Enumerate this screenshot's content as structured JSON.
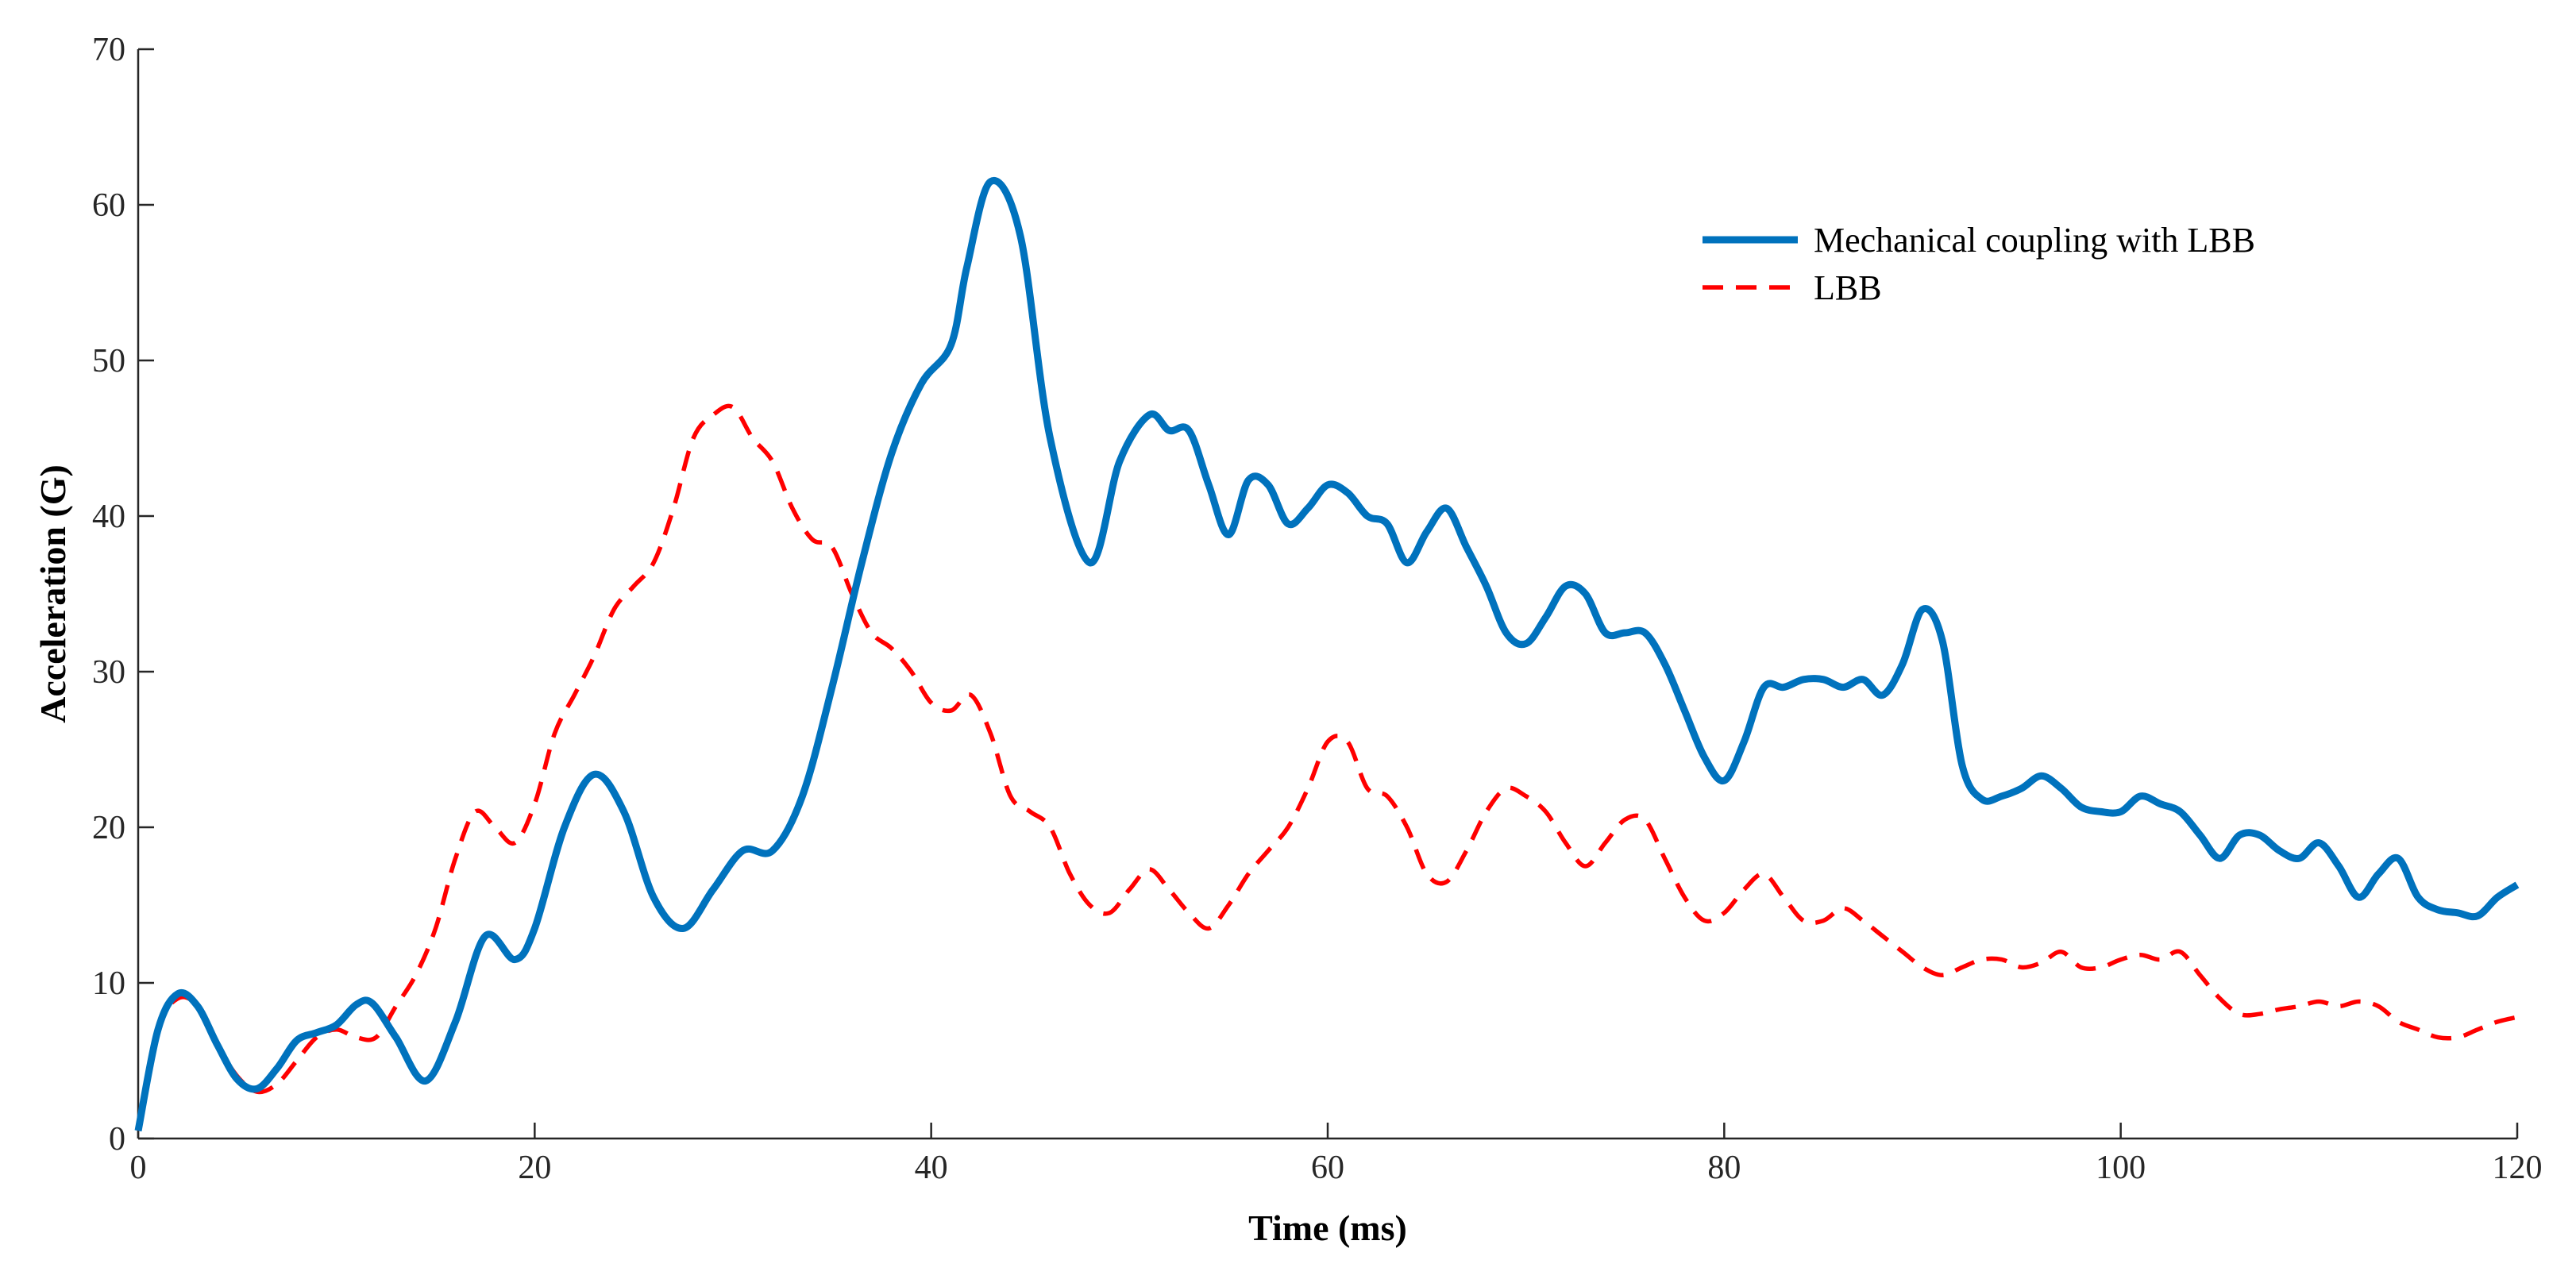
{
  "chart_data": {
    "type": "line",
    "title": "",
    "xlabel": "Time (ms)",
    "ylabel": "Acceleration (G)",
    "xlim": [
      0,
      120
    ],
    "ylim": [
      0,
      70
    ],
    "xticks": [
      0,
      20,
      40,
      60,
      80,
      100,
      120
    ],
    "yticks": [
      0,
      10,
      20,
      30,
      40,
      50,
      60,
      70
    ],
    "grid": false,
    "legend_position": "top-right",
    "series": [
      {
        "name": "Mechanical coupling with LBB",
        "color": "#0072BD",
        "style": "solid",
        "x": [
          0,
          1,
          2,
          3,
          4,
          5,
          6,
          7,
          8,
          9,
          10,
          11,
          11.8,
          13,
          14.5,
          16,
          17.5,
          19,
          20,
          21.5,
          23,
          24.5,
          26,
          27.5,
          29,
          30.5,
          32,
          33.5,
          35,
          36.5,
          38,
          39.5,
          41,
          41.8,
          43,
          44.5,
          46,
          48,
          49.5,
          51,
          52,
          53,
          54,
          55,
          56,
          57,
          58,
          59,
          60,
          61,
          62,
          63,
          64,
          65,
          66,
          67,
          68,
          69,
          70,
          71,
          72,
          73,
          74,
          75,
          76,
          77,
          78,
          79,
          80,
          81,
          82,
          83,
          84,
          85,
          86,
          87,
          88,
          89,
          90,
          91,
          92,
          93,
          94,
          95,
          96,
          97,
          98,
          99,
          100,
          101,
          102,
          103,
          104,
          105,
          106,
          107,
          108,
          109,
          110,
          111,
          112,
          113,
          114,
          115,
          116,
          117,
          118,
          119,
          120
        ],
        "y": [
          0.5,
          7,
          9.3,
          8.5,
          6,
          3.8,
          3.2,
          4.5,
          6.3,
          6.8,
          7.3,
          8.6,
          8.7,
          6.5,
          3.7,
          7.5,
          13,
          11.5,
          13.5,
          20,
          23.4,
          21,
          15.5,
          13.5,
          16,
          18.5,
          18.5,
          22,
          29,
          37,
          44,
          48.5,
          51,
          56,
          61.5,
          58,
          45,
          37,
          43.5,
          46.5,
          45.5,
          45.5,
          42,
          38.8,
          42.3,
          42,
          39.5,
          40.5,
          42,
          41.5,
          40,
          39.5,
          37,
          39,
          40.5,
          38,
          35.5,
          32.5,
          31.8,
          33.5,
          35.5,
          35,
          32.5,
          32.5,
          32.5,
          30.5,
          27.5,
          24.5,
          23,
          25.5,
          29,
          29,
          29.5,
          29.5,
          29,
          29.5,
          28.5,
          30.5,
          34,
          32,
          24,
          21.8,
          22,
          22.5,
          23.3,
          22.5,
          21.3,
          21,
          21,
          22,
          21.5,
          21,
          19.5,
          18,
          19.5,
          19.5,
          18.5,
          18,
          19,
          17.5,
          15.5,
          17,
          18,
          15.5,
          14.7,
          14.5,
          14.3,
          15.5,
          16.3
        ]
      },
      {
        "name": "LBB",
        "color": "#FF0000",
        "style": "dashed",
        "x": [
          0,
          1,
          2,
          3,
          4,
          5,
          6,
          7,
          8,
          9,
          10,
          11,
          12,
          13,
          14,
          15,
          16,
          17,
          18,
          19,
          20,
          21,
          22,
          23,
          24,
          25,
          26,
          27,
          28,
          29,
          30,
          31,
          32,
          33,
          34,
          35,
          36,
          37,
          38,
          39,
          40,
          41,
          42,
          43,
          44,
          45,
          46,
          47,
          48,
          49,
          50,
          51,
          52,
          53,
          54,
          55,
          56,
          57,
          58,
          59,
          60,
          61,
          62,
          63,
          64,
          65,
          66,
          67,
          68,
          69,
          70,
          71,
          72,
          73,
          74,
          75,
          76,
          77,
          78,
          79,
          80,
          81,
          82,
          83,
          84,
          85,
          86,
          87,
          88,
          89,
          90,
          91,
          92,
          93,
          94,
          95,
          96,
          97,
          98,
          99,
          100,
          101,
          102,
          103,
          104,
          105,
          106,
          107,
          108,
          109,
          110,
          111,
          112,
          113,
          114,
          115,
          116,
          117,
          118,
          119,
          120
        ],
        "y": [
          0.5,
          7,
          9,
          8.5,
          6,
          4,
          3,
          3.5,
          5,
          6.5,
          7,
          6.5,
          6.5,
          8.5,
          10.5,
          13.5,
          18,
          21,
          20,
          19,
          21.5,
          26,
          28.5,
          31,
          34,
          35.5,
          37,
          40.5,
          45,
          46.5,
          47,
          45,
          43.5,
          40.5,
          38.5,
          38,
          35,
          32.5,
          31.5,
          30,
          28,
          27.5,
          28.5,
          26,
          22,
          21,
          20,
          17,
          15,
          14.5,
          16,
          17.3,
          16,
          14.5,
          13.5,
          15,
          17,
          18.5,
          20,
          22.5,
          25.5,
          25.5,
          22.5,
          22,
          20,
          17,
          16.5,
          18.5,
          21,
          22.5,
          22,
          21,
          19,
          17.5,
          19,
          20.5,
          20.5,
          18,
          15.5,
          14,
          14.5,
          16,
          17,
          15.5,
          14,
          14,
          14.8,
          14,
          13,
          12,
          11,
          10.5,
          11,
          11.5,
          11.5,
          11,
          11.3,
          12,
          11,
          11,
          11.5,
          11.8,
          11.5,
          12,
          10.5,
          9,
          8,
          8,
          8.3,
          8.5,
          8.8,
          8.5,
          8.8,
          8.5,
          7.5,
          7,
          6.5,
          6.5,
          7,
          7.5,
          7.8
        ]
      }
    ]
  }
}
